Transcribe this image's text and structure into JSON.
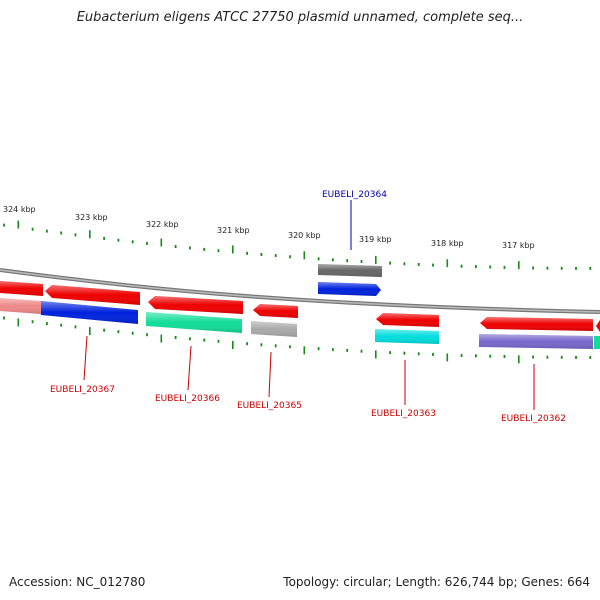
{
  "title": "Eubacterium eligens ATCC 27750 plasmid unnamed, complete seq...",
  "footer": {
    "accession": "Accession: NC_012780",
    "summary": "Topology: circular; Length: 626,744 bp; Genes: 664"
  },
  "scale": {
    "labels": [
      "324 kbp",
      "323 kbp",
      "322 kbp",
      "321 kbp",
      "320 kbp",
      "319 kbp",
      "318 kbp",
      "317 kbp"
    ]
  },
  "genes": [
    {
      "name": "EUBELI_20364",
      "color": "#0000aa"
    },
    {
      "name": "EUBELI_20367",
      "color": "#cc0000"
    },
    {
      "name": "EUBELI_20366",
      "color": "#cc0000"
    },
    {
      "name": "EUBELI_20365",
      "color": "#cc0000"
    },
    {
      "name": "EUBELI_20363",
      "color": "#cc0000"
    },
    {
      "name": "EUBELI_20362",
      "color": "#cc0000"
    }
  ],
  "colors": {
    "backbone": "#888888",
    "tick": "#1a8a1a",
    "cds": "#ee0000",
    "gene_blue": "#0022dd",
    "gene_teal": "#11dd99",
    "gene_gray": "#aaaaaa",
    "gene_darkgray": "#666666",
    "gene_cyan": "#00dddd",
    "gene_purple": "#7766cc",
    "gene_pink": "#ee8888"
  }
}
